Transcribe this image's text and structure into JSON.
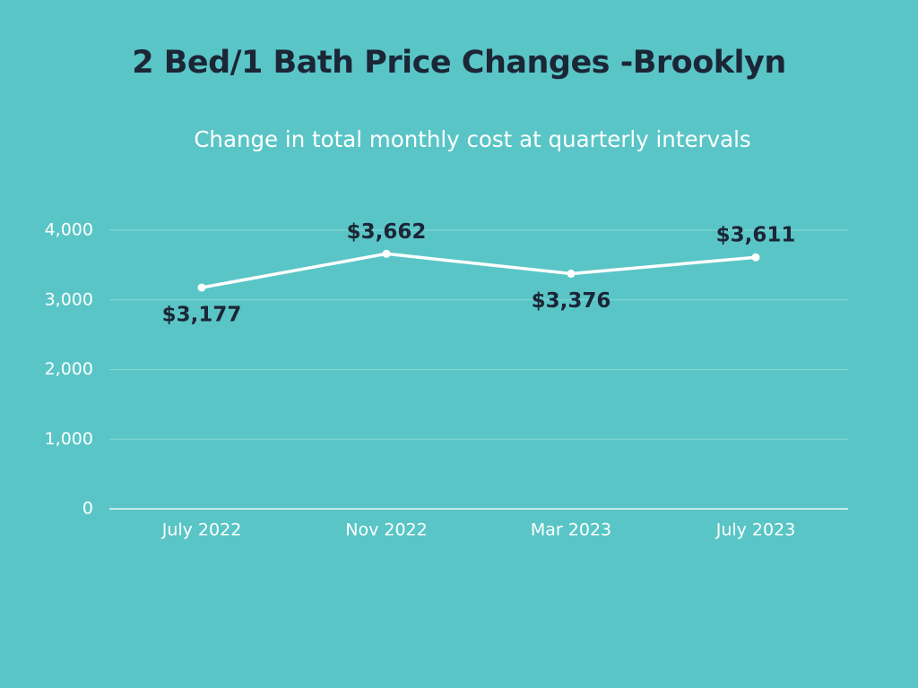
{
  "colors": {
    "background": "#5ac5c6",
    "title": "#1b2636",
    "subtitle": "#ffffff",
    "line": "#ffffff",
    "gridline": "#86d6d5",
    "baseline": "#e9f8f8",
    "tick_label": "#ffffff",
    "data_label": "#1b2636"
  },
  "chart_data": {
    "type": "line",
    "title": "2 Bed/1 Bath Price Changes -Brooklyn",
    "subtitle": "Change in total monthly cost at quarterly intervals",
    "categories": [
      "July 2022",
      "Nov 2022",
      "Mar 2023",
      "July 2023"
    ],
    "values": [
      3177,
      3662,
      3376,
      3611
    ],
    "data_labels": [
      "$3,177",
      "$3,662",
      "$3,376",
      "$3,611"
    ],
    "data_label_positions": [
      "below",
      "above",
      "below",
      "above"
    ],
    "y_ticks": [
      0,
      1000,
      2000,
      3000,
      4000
    ],
    "y_tick_labels": [
      "0",
      "1,000",
      "2,000",
      "3,000",
      "4,000"
    ],
    "ylim": [
      0,
      4000
    ],
    "xlabel": "",
    "ylabel": "",
    "grid": true,
    "legend": "none"
  }
}
